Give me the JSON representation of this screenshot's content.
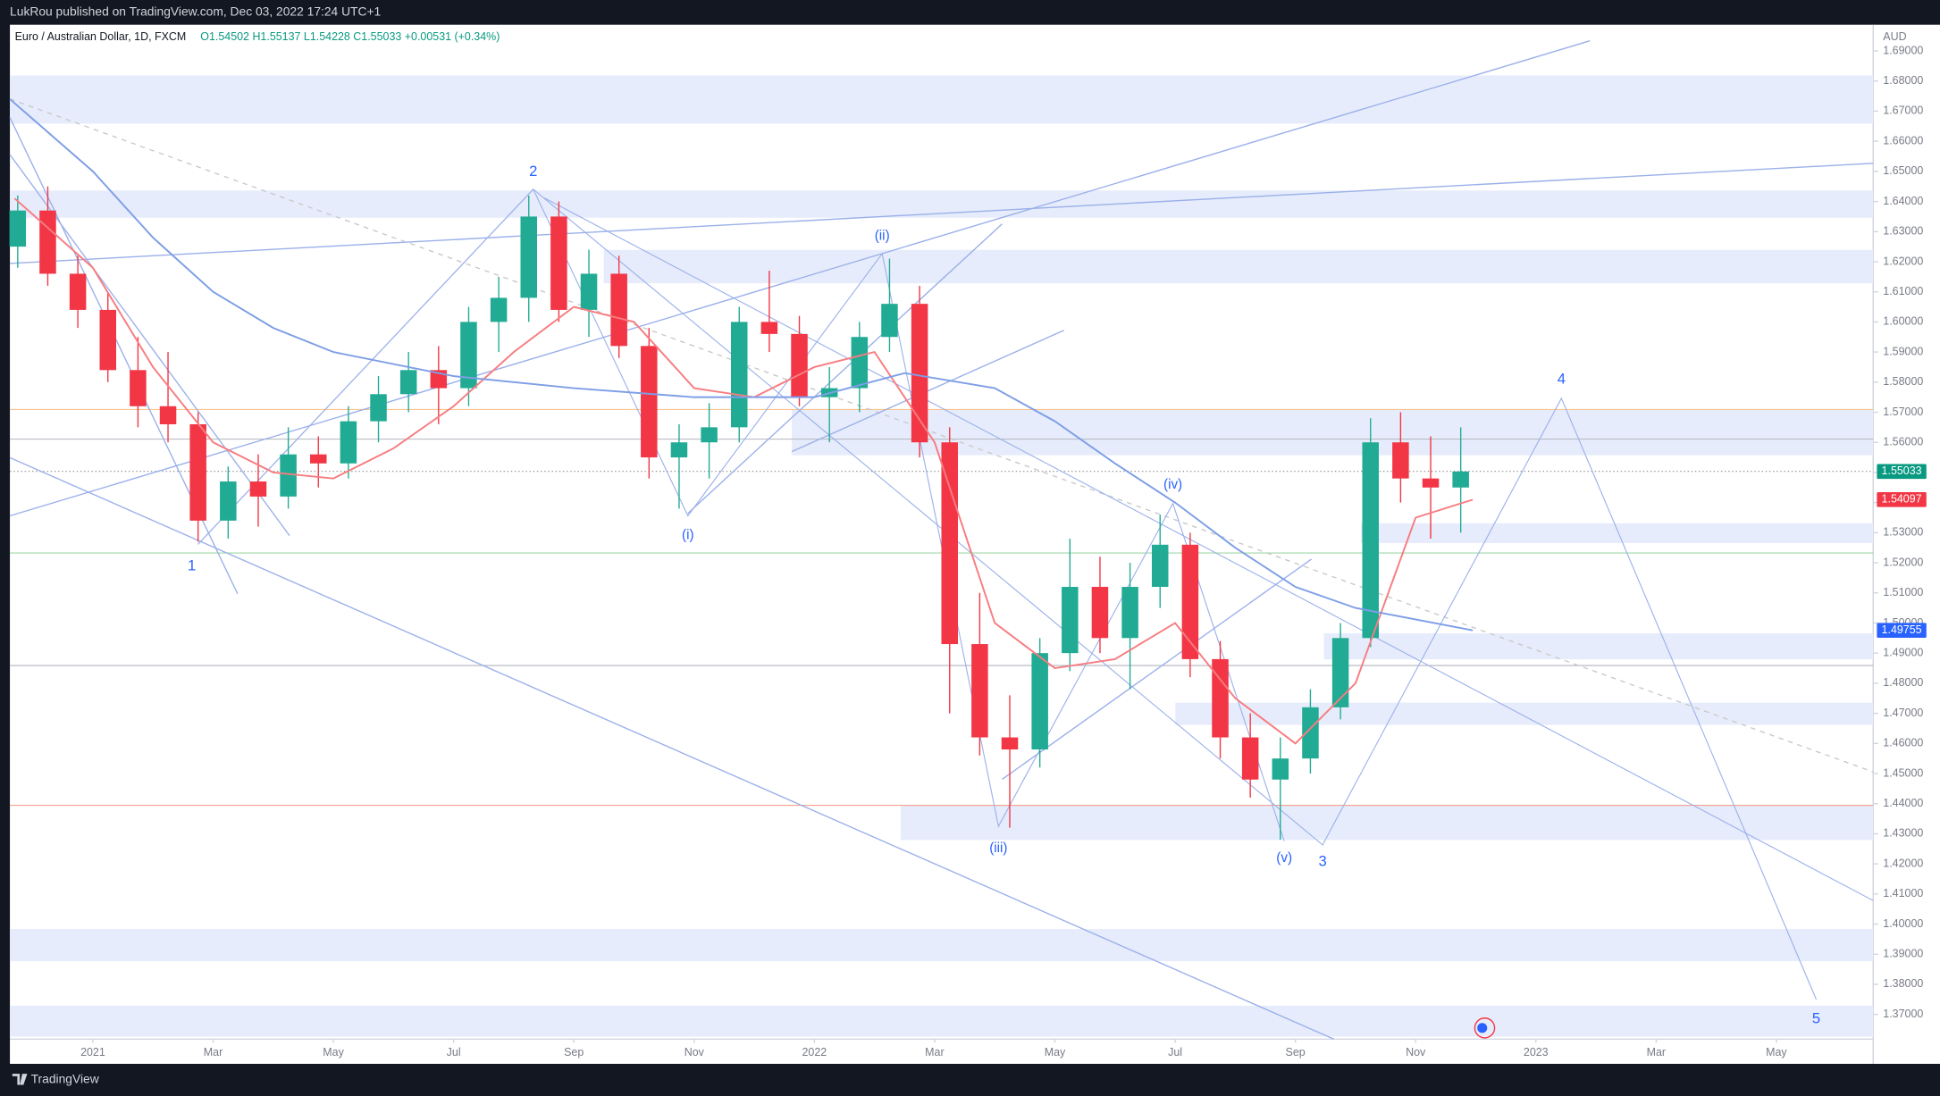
{
  "header": {
    "publisher": "LukRou published on TradingView.com, Dec 03, 2022 17:24 UTC+1",
    "brand": "TradingView"
  },
  "chart_data": {
    "type": "candlestick",
    "symbol": "Euro / Australian Dollar, 1D, FXCM",
    "ohlc_text": "O1.54502 H1.55137 L1.54228 C1.55033 +0.00531 (+0.34%)",
    "currency": "AUD",
    "up_color": "#22ab94",
    "down_color": "#f23645",
    "x": [
      -1.25,
      -0.75,
      -0.25,
      0.25,
      0.75,
      1.25,
      1.75,
      2.25,
      2.75,
      3.25,
      3.75,
      4.25,
      4.75,
      5.25,
      5.75,
      6.25,
      6.75,
      7.25,
      7.75,
      8.25,
      8.75,
      9.25,
      9.75,
      10.25,
      10.75,
      11.25,
      11.75,
      12.25,
      12.75,
      13.25,
      13.75,
      14.25,
      14.75,
      15.25,
      15.75,
      16.25,
      16.75,
      17.25,
      17.75,
      18.25,
      18.75,
      19.25,
      19.75,
      20.25,
      20.75,
      21.25,
      21.75,
      22.25,
      22.75
    ],
    "open": [
      1.625,
      1.637,
      1.616,
      1.604,
      1.584,
      1.572,
      1.566,
      1.534,
      1.547,
      1.542,
      1.556,
      1.553,
      1.567,
      1.576,
      1.584,
      1.578,
      1.6,
      1.608,
      1.635,
      1.604,
      1.616,
      1.592,
      1.555,
      1.56,
      1.565,
      1.6,
      1.596,
      1.575,
      1.578,
      1.595,
      1.606,
      1.56,
      1.493,
      1.462,
      1.458,
      1.49,
      1.512,
      1.495,
      1.512,
      1.526,
      1.488,
      1.462,
      1.448,
      1.455,
      1.472,
      1.495,
      1.56,
      1.548,
      1.545
    ],
    "high": [
      1.642,
      1.645,
      1.622,
      1.61,
      1.595,
      1.59,
      1.57,
      1.552,
      1.556,
      1.565,
      1.562,
      1.572,
      1.582,
      1.59,
      1.592,
      1.605,
      1.615,
      1.642,
      1.64,
      1.624,
      1.622,
      1.598,
      1.566,
      1.573,
      1.605,
      1.617,
      1.602,
      1.585,
      1.6,
      1.621,
      1.612,
      1.565,
      1.51,
      1.476,
      1.495,
      1.528,
      1.522,
      1.52,
      1.536,
      1.53,
      1.494,
      1.47,
      1.462,
      1.478,
      1.5,
      1.568,
      1.57,
      1.562,
      1.565
    ],
    "low": [
      1.618,
      1.612,
      1.598,
      1.58,
      1.565,
      1.56,
      1.527,
      1.528,
      1.532,
      1.538,
      1.545,
      1.548,
      1.56,
      1.57,
      1.566,
      1.572,
      1.59,
      1.6,
      1.6,
      1.595,
      1.588,
      1.548,
      1.538,
      1.548,
      1.56,
      1.59,
      1.572,
      1.56,
      1.57,
      1.59,
      1.555,
      1.47,
      1.456,
      1.432,
      1.452,
      1.484,
      1.49,
      1.478,
      1.505,
      1.482,
      1.455,
      1.442,
      1.428,
      1.45,
      1.468,
      1.492,
      1.54,
      1.528,
      1.53
    ],
    "close": [
      1.637,
      1.616,
      1.604,
      1.584,
      1.572,
      1.566,
      1.534,
      1.547,
      1.542,
      1.556,
      1.553,
      1.567,
      1.576,
      1.584,
      1.578,
      1.6,
      1.608,
      1.635,
      1.604,
      1.616,
      1.592,
      1.555,
      1.56,
      1.565,
      1.6,
      1.596,
      1.575,
      1.578,
      1.595,
      1.606,
      1.56,
      1.493,
      1.462,
      1.458,
      1.49,
      1.512,
      1.495,
      1.512,
      1.526,
      1.488,
      1.462,
      1.448,
      1.455,
      1.472,
      1.495,
      1.56,
      1.548,
      1.545,
      1.55033
    ],
    "moving_averages": [
      {
        "color": "#f77c80",
        "x": [
          -1.3,
          0,
          1,
          2,
          3,
          4,
          5,
          6,
          7,
          8,
          9,
          10,
          11,
          12,
          13,
          14,
          15,
          16,
          17,
          18,
          19,
          20,
          21,
          22,
          22.95
        ],
        "values": [
          1.641,
          1.618,
          1.585,
          1.56,
          1.55,
          1.548,
          1.558,
          1.572,
          1.59,
          1.605,
          1.6,
          1.578,
          1.575,
          1.585,
          1.59,
          1.56,
          1.5,
          1.485,
          1.488,
          1.5,
          1.475,
          1.46,
          1.48,
          1.535,
          1.54097
        ]
      },
      {
        "color": "#7e9ee6",
        "x": [
          -1.38,
          0,
          1,
          2,
          3,
          4,
          6,
          8,
          10,
          12,
          13.5,
          15,
          16,
          17,
          18,
          19,
          20,
          21,
          22.95
        ],
        "values": [
          1.674,
          1.65,
          1.628,
          1.61,
          1.598,
          1.59,
          1.582,
          1.578,
          1.575,
          1.575,
          1.583,
          1.578,
          1.567,
          1.553,
          1.54,
          1.525,
          1.512,
          1.505,
          1.49755
        ]
      }
    ],
    "price_labels": [
      {
        "value": 1.55033,
        "color": "#089981"
      },
      {
        "value": 1.54097,
        "color": "#f23645"
      },
      {
        "value": 1.49755,
        "color": "#2962ff"
      }
    ],
    "wave_labels": [
      "1",
      "2",
      "3",
      "4",
      "5",
      "(i)",
      "(ii)",
      "(iii)",
      "(iv)",
      "(v)"
    ],
    "wave_color": "#2962ff",
    "xlim": [
      -1.38,
      29.61
    ],
    "xticks": [
      {
        "value": 0,
        "label": "2021"
      },
      {
        "value": 2,
        "label": "Mar"
      },
      {
        "value": 4,
        "label": "May"
      },
      {
        "value": 6,
        "label": "Jul"
      },
      {
        "value": 8,
        "label": "Sep"
      },
      {
        "value": 10,
        "label": "Nov"
      },
      {
        "value": 12,
        "label": "2022"
      },
      {
        "value": 14,
        "label": "Mar"
      },
      {
        "value": 16,
        "label": "May"
      },
      {
        "value": 18,
        "label": "Jul"
      },
      {
        "value": 20,
        "label": "Sep"
      },
      {
        "value": 22,
        "label": "Nov"
      },
      {
        "value": 24,
        "label": "2023"
      },
      {
        "value": 26,
        "label": "Mar"
      },
      {
        "value": 28,
        "label": "May"
      }
    ],
    "ylim": [
      1.3618,
      1.6987
    ],
    "yticks": [
      {
        "value": 1.37,
        "label": "1.37000"
      },
      {
        "value": 1.38,
        "label": "1.38000"
      },
      {
        "value": 1.39,
        "label": "1.39000"
      },
      {
        "value": 1.4,
        "label": "1.40000"
      },
      {
        "value": 1.41,
        "label": "1.41000"
      },
      {
        "value": 1.42,
        "label": "1.42000"
      },
      {
        "value": 1.43,
        "label": "1.43000"
      },
      {
        "value": 1.44,
        "label": "1.44000"
      },
      {
        "value": 1.45,
        "label": "1.45000"
      },
      {
        "value": 1.46,
        "label": "1.46000"
      },
      {
        "value": 1.47,
        "label": "1.47000"
      },
      {
        "value": 1.48,
        "label": "1.48000"
      },
      {
        "value": 1.49,
        "label": "1.49000"
      },
      {
        "value": 1.5,
        "label": "1.50000"
      },
      {
        "value": 1.51,
        "label": "1.51000"
      },
      {
        "value": 1.52,
        "label": "1.52000"
      },
      {
        "value": 1.53,
        "label": "1.53000"
      },
      {
        "value": 1.54,
        "label": "1.54000"
      },
      {
        "value": 1.55,
        "label": "1.55000"
      },
      {
        "value": 1.56,
        "label": "1.56000"
      },
      {
        "value": 1.57,
        "label": "1.57000"
      },
      {
        "value": 1.58,
        "label": "1.58000"
      },
      {
        "value": 1.59,
        "label": "1.59000"
      },
      {
        "value": 1.6,
        "label": "1.60000"
      },
      {
        "value": 1.61,
        "label": "1.61000"
      },
      {
        "value": 1.62,
        "label": "1.62000"
      },
      {
        "value": 1.63,
        "label": "1.63000"
      },
      {
        "value": 1.64,
        "label": "1.64000"
      },
      {
        "value": 1.65,
        "label": "1.65000"
      },
      {
        "value": 1.66,
        "label": "1.66000"
      },
      {
        "value": 1.67,
        "label": "1.67000"
      },
      {
        "value": 1.68,
        "label": "1.68000"
      },
      {
        "value": 1.69,
        "label": "1.69000"
      }
    ]
  }
}
